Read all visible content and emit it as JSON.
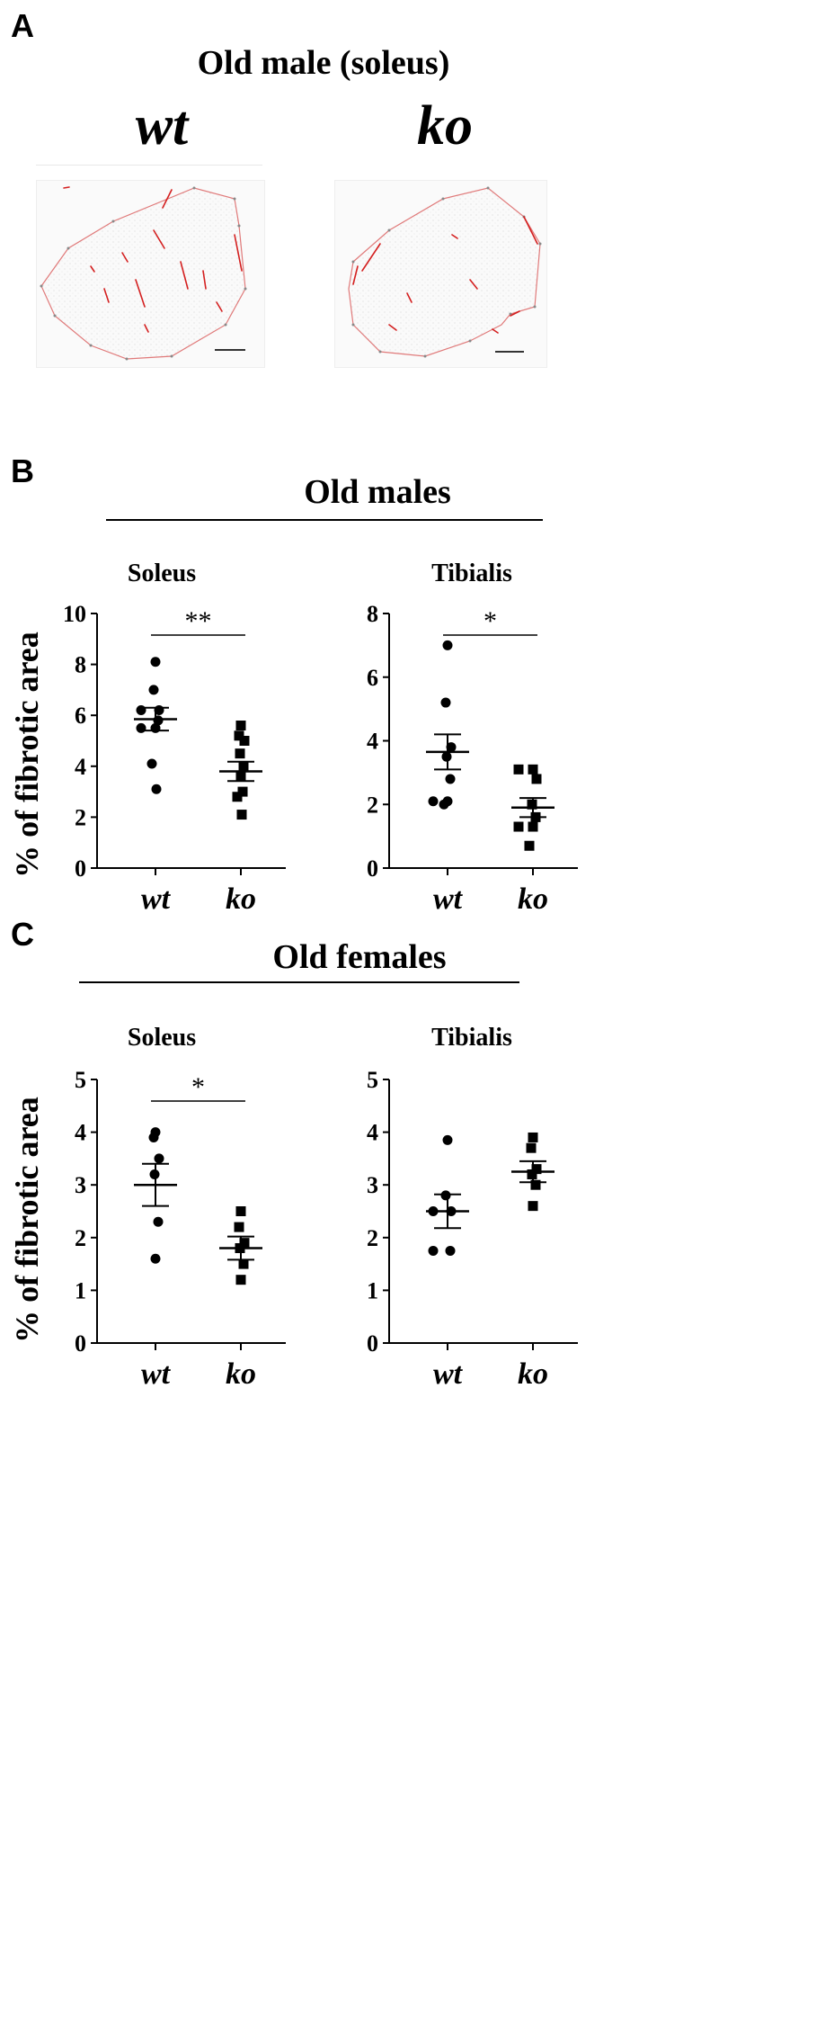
{
  "panel_a": {
    "letter": "A",
    "title": "Old male (soleus)",
    "labels": [
      "wt",
      "ko"
    ]
  },
  "panel_b": {
    "letter": "B",
    "title": "Old males"
  },
  "panel_c": {
    "letter": "C",
    "title": "Old females"
  },
  "ylabel": "% of fibrotic area",
  "chart_data": [
    {
      "id": "b-soleus",
      "type": "scatter",
      "title": "Soleus",
      "ylabel": "% of fibrotic area",
      "categories": [
        "wt",
        "ko"
      ],
      "ylim": [
        0,
        10
      ],
      "yticks": [
        0,
        2,
        4,
        6,
        8,
        10
      ],
      "series": [
        {
          "name": "wt",
          "marker": "circle",
          "values": [
            8.1,
            7.0,
            6.2,
            6.2,
            5.8,
            5.5,
            5.5,
            4.1,
            3.1
          ],
          "mean": 5.85,
          "sem": 0.45
        },
        {
          "name": "ko",
          "marker": "square",
          "values": [
            5.6,
            5.2,
            5.0,
            4.5,
            4.0,
            3.6,
            3.0,
            2.8,
            2.1
          ],
          "mean": 3.8,
          "sem": 0.38
        }
      ],
      "significance": "**"
    },
    {
      "id": "b-tibialis",
      "type": "scatter",
      "title": "Tibialis",
      "ylabel": "",
      "categories": [
        "wt",
        "ko"
      ],
      "ylim": [
        0,
        8
      ],
      "yticks": [
        0,
        2,
        4,
        6,
        8
      ],
      "series": [
        {
          "name": "wt",
          "marker": "circle",
          "values": [
            7.0,
            5.2,
            3.8,
            3.5,
            2.8,
            2.1,
            2.1,
            2.0
          ],
          "mean": 3.65,
          "sem": 0.55
        },
        {
          "name": "ko",
          "marker": "square",
          "values": [
            3.1,
            3.1,
            2.8,
            2.0,
            1.6,
            1.3,
            1.3,
            0.7
          ],
          "mean": 1.9,
          "sem": 0.3
        }
      ],
      "significance": "*"
    },
    {
      "id": "c-soleus",
      "type": "scatter",
      "title": "Soleus",
      "ylabel": "% of fibrotic area",
      "categories": [
        "wt",
        "ko"
      ],
      "ylim": [
        0,
        5
      ],
      "yticks": [
        0,
        1,
        2,
        3,
        4,
        5
      ],
      "series": [
        {
          "name": "wt",
          "marker": "circle",
          "values": [
            4.0,
            3.9,
            3.5,
            3.2,
            2.3,
            1.6
          ],
          "mean": 3.0,
          "sem": 0.4
        },
        {
          "name": "ko",
          "marker": "square",
          "values": [
            2.5,
            2.2,
            1.9,
            1.8,
            1.5,
            1.2
          ],
          "mean": 1.8,
          "sem": 0.22
        }
      ],
      "significance": "*"
    },
    {
      "id": "c-tibialis",
      "type": "scatter",
      "title": "Tibialis",
      "ylabel": "",
      "categories": [
        "wt",
        "ko"
      ],
      "ylim": [
        0,
        5
      ],
      "yticks": [
        0,
        1,
        2,
        3,
        4,
        5
      ],
      "series": [
        {
          "name": "wt",
          "marker": "circle",
          "values": [
            3.85,
            2.8,
            2.5,
            2.5,
            1.75,
            1.75
          ],
          "mean": 2.5,
          "sem": 0.32
        },
        {
          "name": "ko",
          "marker": "square",
          "values": [
            3.9,
            3.7,
            3.3,
            3.2,
            3.0,
            2.6
          ],
          "mean": 3.25,
          "sem": 0.2
        }
      ],
      "significance": ""
    }
  ]
}
